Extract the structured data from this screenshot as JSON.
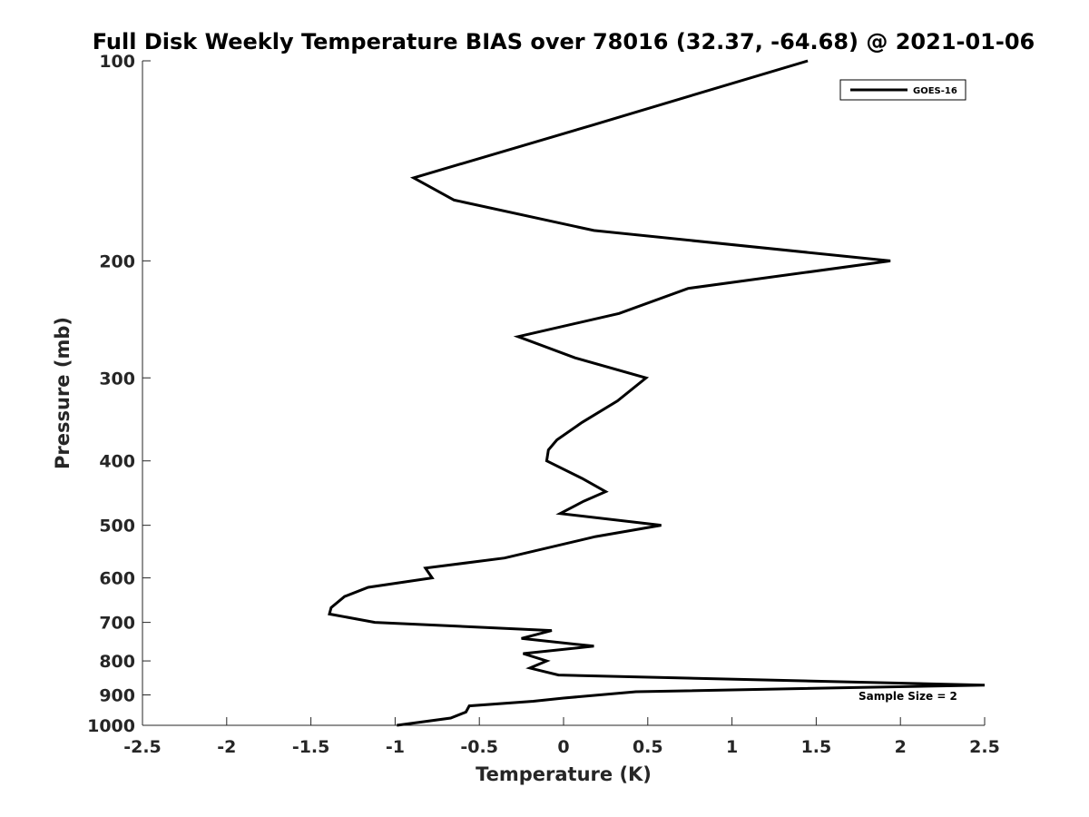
{
  "chart_data": {
    "type": "line",
    "title": "Full Disk Weekly Temperature BIAS over 78016 (32.37, -64.68) @ 2021-01-06",
    "xlabel": "Temperature (K)",
    "ylabel": "Pressure (mb)",
    "xlim": [
      -2.5,
      2.5
    ],
    "ylim": [
      1000,
      100
    ],
    "y_scale": "log",
    "x_ticks": [
      "-2.5",
      "-2",
      "-1.5",
      "-1",
      "-0.5",
      "0",
      "0.5",
      "1",
      "1.5",
      "2",
      "2.5"
    ],
    "y_ticks": [
      "100",
      "200",
      "300",
      "400",
      "500",
      "600",
      "700",
      "800",
      "900",
      "1000"
    ],
    "grid": false,
    "legend_position": "top-right",
    "annotation": "Sample Size = 2",
    "series": [
      {
        "name": "GOES-16",
        "color": "#000000",
        "points": [
          {
            "x": 1.45,
            "y": 100
          },
          {
            "x": 0.17,
            "y": 125
          },
          {
            "x": -0.89,
            "y": 150
          },
          {
            "x": -0.65,
            "y": 162
          },
          {
            "x": 0.18,
            "y": 180
          },
          {
            "x": 1.94,
            "y": 200
          },
          {
            "x": 0.74,
            "y": 220
          },
          {
            "x": 0.33,
            "y": 240
          },
          {
            "x": -0.27,
            "y": 260
          },
          {
            "x": 0.07,
            "y": 280
          },
          {
            "x": 0.49,
            "y": 300
          },
          {
            "x": 0.32,
            "y": 325
          },
          {
            "x": 0.11,
            "y": 350
          },
          {
            "x": -0.04,
            "y": 372
          },
          {
            "x": -0.09,
            "y": 385
          },
          {
            "x": -0.1,
            "y": 400
          },
          {
            "x": 0.11,
            "y": 425
          },
          {
            "x": 0.25,
            "y": 445
          },
          {
            "x": 0.12,
            "y": 460
          },
          {
            "x": -0.02,
            "y": 480
          },
          {
            "x": 0.58,
            "y": 500
          },
          {
            "x": 0.19,
            "y": 520
          },
          {
            "x": -0.35,
            "y": 560
          },
          {
            "x": -0.82,
            "y": 580
          },
          {
            "x": -0.78,
            "y": 600
          },
          {
            "x": -1.16,
            "y": 620
          },
          {
            "x": -1.3,
            "y": 640
          },
          {
            "x": -1.38,
            "y": 665
          },
          {
            "x": -1.39,
            "y": 680
          },
          {
            "x": -1.12,
            "y": 700
          },
          {
            "x": -0.07,
            "y": 720
          },
          {
            "x": -0.25,
            "y": 740
          },
          {
            "x": 0.18,
            "y": 760
          },
          {
            "x": -0.24,
            "y": 780
          },
          {
            "x": -0.1,
            "y": 800
          },
          {
            "x": -0.2,
            "y": 820
          },
          {
            "x": -0.03,
            "y": 840
          },
          {
            "x": 2.5,
            "y": 870
          },
          {
            "x": 0.43,
            "y": 890
          },
          {
            "x": 0.0,
            "y": 910
          },
          {
            "x": -0.18,
            "y": 920
          },
          {
            "x": -0.56,
            "y": 935
          },
          {
            "x": -0.58,
            "y": 955
          },
          {
            "x": -0.67,
            "y": 975
          },
          {
            "x": -0.99,
            "y": 1000
          }
        ]
      }
    ]
  }
}
